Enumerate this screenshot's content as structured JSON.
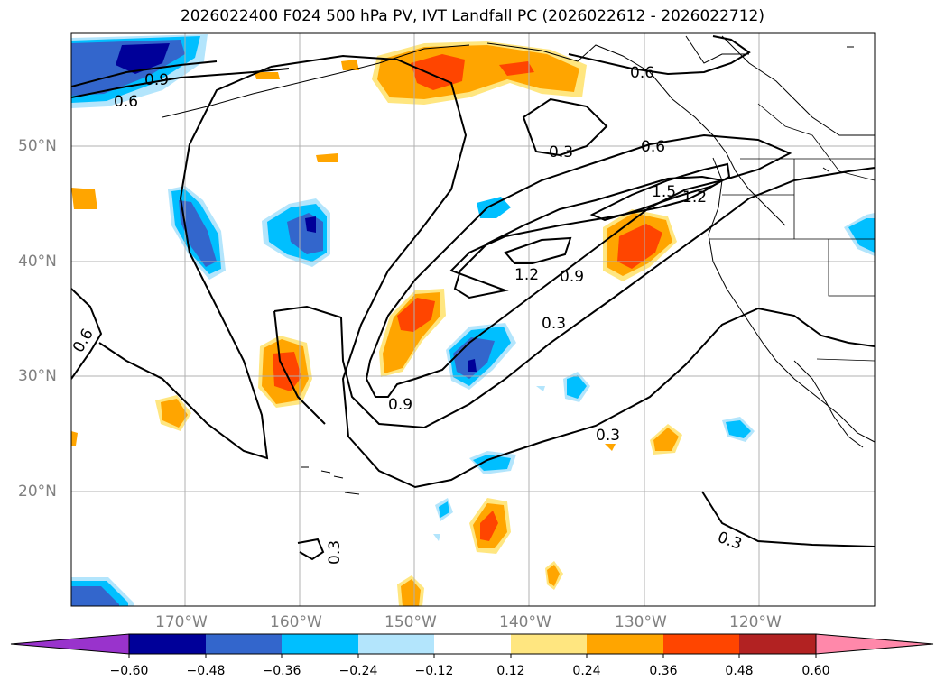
{
  "title": "2026022400 F024 500 hPa PV, IVT Landfall PC (2026022612 - 2026022712)",
  "latitude_labels": [
    "50°N",
    "40°N",
    "30°N",
    "20°N"
  ],
  "longitude_labels": [
    "170°W",
    "160°W",
    "150°W",
    "140°W",
    "130°W",
    "120°W"
  ],
  "contour_labels": [
    "0.9",
    "0.6",
    "0.6",
    "0.6",
    "0.3",
    "1.5",
    "1.2",
    "1.2",
    "0.9",
    "0.3",
    "0.6",
    "0.9",
    "0.3",
    "0.3",
    "0.3"
  ],
  "colorbar": {
    "ticks": [
      "−0.60",
      "−0.48",
      "−0.36",
      "−0.24",
      "−0.12",
      "0.12",
      "0.24",
      "0.36",
      "0.48",
      "0.60"
    ],
    "tick_values": [
      -0.6,
      -0.48,
      -0.36,
      -0.24,
      -0.12,
      0.12,
      0.24,
      0.36,
      0.48,
      0.6
    ],
    "colors": [
      "#9933cc",
      "#000099",
      "#3366cc",
      "#00bfff",
      "#b3e5fc",
      "#ffffff",
      "#ffe680",
      "#ffa500",
      "#ff4500",
      "#b22222",
      "#ff88aa"
    ]
  },
  "colors": {
    "purple": "#9933cc",
    "navy": "#000099",
    "blue": "#3366cc",
    "cyan": "#00bfff",
    "lightblue": "#b3e5fc",
    "yellow": "#ffe680",
    "orange": "#ffa500",
    "redorange": "#ff4500",
    "darkred": "#b22222",
    "pink": "#ff88aa",
    "grid": "#b0b0b0",
    "axis_label": "#808080"
  }
}
